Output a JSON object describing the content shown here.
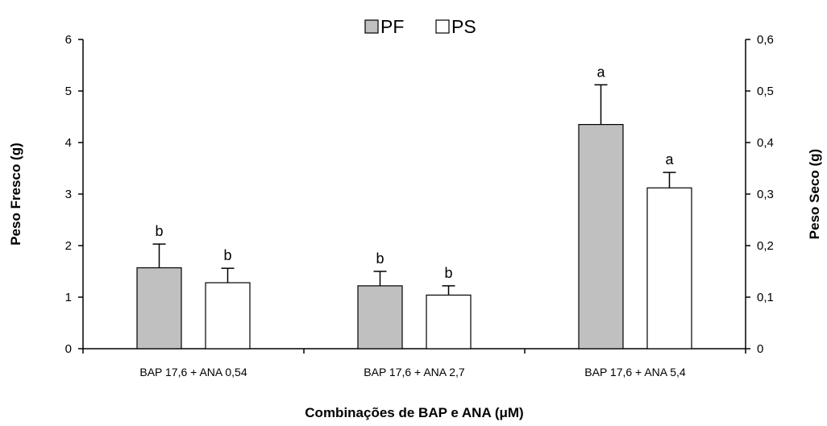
{
  "chart_data": {
    "type": "bar",
    "categories": [
      "BAP 17,6 + ANA 0,54",
      "BAP 17,6 + ANA 2,7",
      "BAP 17,6 + ANA 5,4"
    ],
    "series": [
      {
        "name": "PF",
        "axis": "left",
        "color": "#c0c0c0",
        "values": [
          1.57,
          1.22,
          4.35
        ],
        "errors": [
          0.46,
          0.28,
          0.77
        ],
        "labels": [
          "b",
          "b",
          "a"
        ]
      },
      {
        "name": "PS",
        "axis": "right",
        "color": "#ffffff",
        "values": [
          0.128,
          0.104,
          0.312
        ],
        "errors": [
          0.028,
          0.018,
          0.03
        ],
        "labels": [
          "b",
          "b",
          "a"
        ]
      }
    ],
    "ylabel": "Peso Fresco (g)",
    "y2label": "Peso Seco (g)",
    "xlabel": "Combinações de BAP e ANA (μM)",
    "ylim": [
      0,
      6
    ],
    "y2lim": [
      0,
      0.6
    ],
    "yticks": [
      "0",
      "1",
      "2",
      "3",
      "4",
      "5",
      "6"
    ],
    "y2ticks": [
      "0",
      "0,1",
      "0,2",
      "0,3",
      "0,4",
      "0,5",
      "0,6"
    ],
    "legend_position": "top-center"
  }
}
